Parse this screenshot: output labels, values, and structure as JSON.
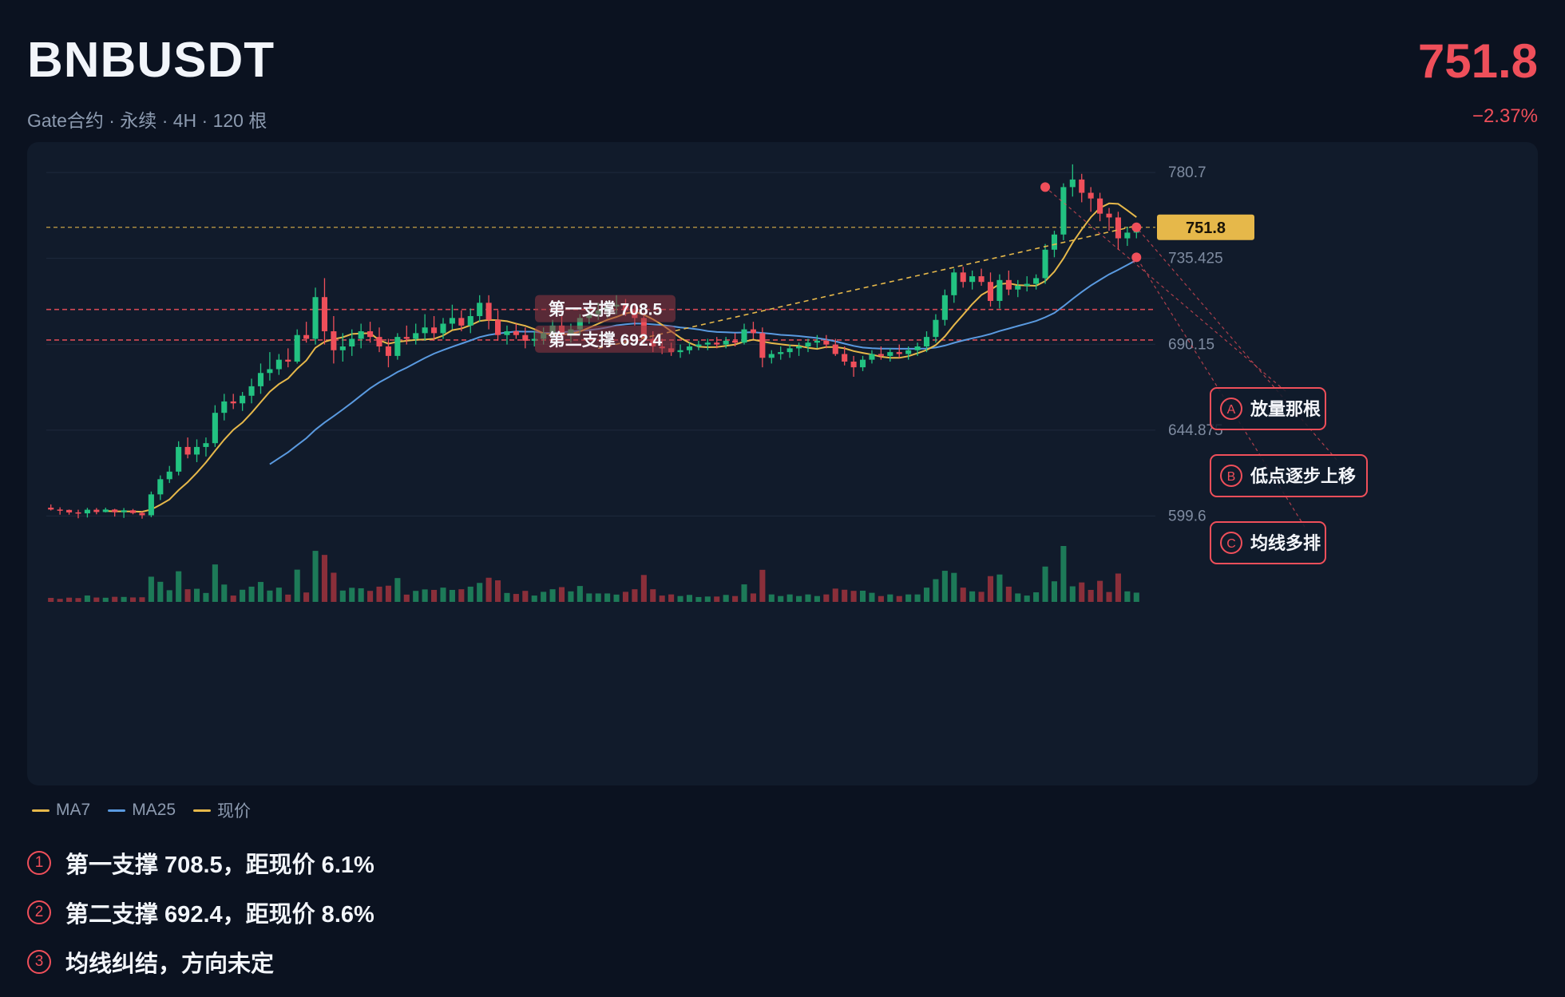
{
  "header": {
    "symbol": "BNBUSDT",
    "subtitle": "Gate合约 · 永续 · 4H · 120 根",
    "price": "751.8",
    "change": "−2.37%"
  },
  "colors": {
    "up": "#22c281",
    "down": "#ef4f5a",
    "up_volume": "#1d7a58",
    "down_volume": "#8a2f3a",
    "ma7": "#e6b84a",
    "ma25": "#5a9ae0",
    "price_tag": "#e6b84a",
    "support": "#d64a55",
    "annotation": "#ef4f5a"
  },
  "chart_data": {
    "type": "candlestick",
    "bars": 120,
    "ylim": [
      580,
      790
    ],
    "y_ticks": [
      "780.7",
      "735.425",
      "690.15",
      "644.875",
      "599.6"
    ],
    "current_price": 751.8,
    "current_price_label": "751.8",
    "supports": [
      {
        "label": "第一支撑 708.5",
        "value": 708.5
      },
      {
        "label": "第二支撑 692.4",
        "value": 692.4
      }
    ],
    "ohlc": [
      [
        604.0,
        605.7,
        602.5,
        603.0
      ],
      [
        603.0,
        604.2,
        600.3,
        602.8
      ],
      [
        602.8,
        603.0,
        600.3,
        601.5
      ],
      [
        601.5,
        602.9,
        598.4,
        601.0
      ],
      [
        601.0,
        603.9,
        598.8,
        602.9
      ],
      [
        602.9,
        603.8,
        600.5,
        601.7
      ],
      [
        601.7,
        604.0,
        601.5,
        603.0
      ],
      [
        603.0,
        603.4,
        599.3,
        601.6
      ],
      [
        601.6,
        603.8,
        598.6,
        602.6
      ],
      [
        602.6,
        603.3,
        600.5,
        601.2
      ],
      [
        601.2,
        602.0,
        598.2,
        600.0
      ],
      [
        600.0,
        612.5,
        599.0,
        611.0
      ],
      [
        611.0,
        621.0,
        608.0,
        619.0
      ],
      [
        619.0,
        626.0,
        617.0,
        623.0
      ],
      [
        623.0,
        639.0,
        621.0,
        636.0
      ],
      [
        636.0,
        641.0,
        630.0,
        632.0
      ],
      [
        632.0,
        640.0,
        628.0,
        636.0
      ],
      [
        636.0,
        641.0,
        631.0,
        638.0
      ],
      [
        638.0,
        658.0,
        636.0,
        654.0
      ],
      [
        654.0,
        664.0,
        650.0,
        660.0
      ],
      [
        660.0,
        664.0,
        656.0,
        659.0
      ],
      [
        659.0,
        665.0,
        655.0,
        663.0
      ],
      [
        663.0,
        672.0,
        659.0,
        668.0
      ],
      [
        668.0,
        680.0,
        664.0,
        675.0
      ],
      [
        675.0,
        686.0,
        671.0,
        677.0
      ],
      [
        677.0,
        685.0,
        674.0,
        682.0
      ],
      [
        682.0,
        688.0,
        678.0,
        681.0
      ],
      [
        681.0,
        698.0,
        680.0,
        695.0
      ],
      [
        695.0,
        702.0,
        691.0,
        693.0
      ],
      [
        693.0,
        720.0,
        690.0,
        715.0
      ],
      [
        715.0,
        725.0,
        690.0,
        697.0
      ],
      [
        697.0,
        705.0,
        680.0,
        687.0
      ],
      [
        687.0,
        696.0,
        681.0,
        689.0
      ],
      [
        689.0,
        698.0,
        684.0,
        693.0
      ],
      [
        693.0,
        701.0,
        688.0,
        697.0
      ],
      [
        697.0,
        702.0,
        691.0,
        694.0
      ],
      [
        694.0,
        699.0,
        686.0,
        689.0
      ],
      [
        689.0,
        693.0,
        678.0,
        684.0
      ],
      [
        684.0,
        696.0,
        682.0,
        694.0
      ],
      [
        694.0,
        700.0,
        690.0,
        693.0
      ],
      [
        693.0,
        701.0,
        690.0,
        696.0
      ],
      [
        696.0,
        706.0,
        692.0,
        699.0
      ],
      [
        699.0,
        705.0,
        692.0,
        696.0
      ],
      [
        696.0,
        704.0,
        693.0,
        701.0
      ],
      [
        701.0,
        711.0,
        698.0,
        704.0
      ],
      [
        704.0,
        708.0,
        697.0,
        700.0
      ],
      [
        700.0,
        709.0,
        696.0,
        705.0
      ],
      [
        705.0,
        716.0,
        702.0,
        712.0
      ],
      [
        712.0,
        716.0,
        698.0,
        703.0
      ],
      [
        703.0,
        708.0,
        692.0,
        695.0
      ],
      [
        695.0,
        700.0,
        690.0,
        697.0
      ],
      [
        697.0,
        701.0,
        693.0,
        695.0
      ],
      [
        695.0,
        699.0,
        688.0,
        692.0
      ],
      [
        692.0,
        697.0,
        689.0,
        693.0
      ],
      [
        693.0,
        699.0,
        690.0,
        696.0
      ],
      [
        696.0,
        703.0,
        692.0,
        700.0
      ],
      [
        700.0,
        705.0,
        693.0,
        695.0
      ],
      [
        695.0,
        701.0,
        691.0,
        698.0
      ],
      [
        698.0,
        706.0,
        695.0,
        704.0
      ],
      [
        704.0,
        710.0,
        701.0,
        706.0
      ],
      [
        706.0,
        712.0,
        703.0,
        708.0
      ],
      [
        708.0,
        713.0,
        704.0,
        710.0
      ],
      [
        710.0,
        716.0,
        706.0,
        711.0
      ],
      [
        711.0,
        714.0,
        705.0,
        708.0
      ],
      [
        708.0,
        711.0,
        700.0,
        704.0
      ],
      [
        704.0,
        707.0,
        690.0,
        693.0
      ],
      [
        693.0,
        697.0,
        686.0,
        689.0
      ],
      [
        689.0,
        693.0,
        685.0,
        688.0
      ],
      [
        688.0,
        691.0,
        684.0,
        686.0
      ],
      [
        686.0,
        690.0,
        683.0,
        687.0
      ],
      [
        687.0,
        691.0,
        685.0,
        689.0
      ],
      [
        689.0,
        692.0,
        687.0,
        690.0
      ],
      [
        690.0,
        693.0,
        687.0,
        691.0
      ],
      [
        691.0,
        694.0,
        688.0,
        690.0
      ],
      [
        690.0,
        694.0,
        688.0,
        692.0
      ],
      [
        692.0,
        696.0,
        689.0,
        691.0
      ],
      [
        691.0,
        701.0,
        690.0,
        698.0
      ],
      [
        698.0,
        702.0,
        693.0,
        696.0
      ],
      [
        696.0,
        699.0,
        678.0,
        683.0
      ],
      [
        683.0,
        687.0,
        680.0,
        685.0
      ],
      [
        685.0,
        689.0,
        682.0,
        686.0
      ],
      [
        686.0,
        690.0,
        683.0,
        688.0
      ],
      [
        688.0,
        691.0,
        684.0,
        689.0
      ],
      [
        689.0,
        693.0,
        686.0,
        691.0
      ],
      [
        691.0,
        695.0,
        688.0,
        692.0
      ],
      [
        692.0,
        695.0,
        688.0,
        690.0
      ],
      [
        690.0,
        693.0,
        684.0,
        685.0
      ],
      [
        685.0,
        689.0,
        679.0,
        681.0
      ],
      [
        681.0,
        684.0,
        673.0,
        678.0
      ],
      [
        678.0,
        684.0,
        676.0,
        682.0
      ],
      [
        682.0,
        687.0,
        680.0,
        685.0
      ],
      [
        685.0,
        689.0,
        682.0,
        684.0
      ],
      [
        684.0,
        688.0,
        681.0,
        686.0
      ],
      [
        686.0,
        690.0,
        683.0,
        685.0
      ],
      [
        685.0,
        689.0,
        682.0,
        687.0
      ],
      [
        687.0,
        691.0,
        684.0,
        689.0
      ],
      [
        689.0,
        697.0,
        686.0,
        694.0
      ],
      [
        694.0,
        706.0,
        691.0,
        703.0
      ],
      [
        703.0,
        719.0,
        700.0,
        716.0
      ],
      [
        716.0,
        730.0,
        712.0,
        728.0
      ],
      [
        728.0,
        731.0,
        720.0,
        723.0
      ],
      [
        723.0,
        729.0,
        719.0,
        726.0
      ],
      [
        726.0,
        730.0,
        721.0,
        723.0
      ],
      [
        723.0,
        728.0,
        710.0,
        713.0
      ],
      [
        713.0,
        727.0,
        709.0,
        724.0
      ],
      [
        724.0,
        729.0,
        716.0,
        719.0
      ],
      [
        719.0,
        724.0,
        715.0,
        721.0
      ],
      [
        721.0,
        726.0,
        718.0,
        722.0
      ],
      [
        722.0,
        727.0,
        719.0,
        725.0
      ],
      [
        725.0,
        743.0,
        722.0,
        740.0
      ],
      [
        740.0,
        750.0,
        736.0,
        748.0
      ],
      [
        748.0,
        775.0,
        745.0,
        773.0
      ],
      [
        773.0,
        785.0,
        768.0,
        777.0
      ],
      [
        777.0,
        780.0,
        765.0,
        770.0
      ],
      [
        770.0,
        773.0,
        760.0,
        767.0
      ],
      [
        767.0,
        770.0,
        755.0,
        759.0
      ],
      [
        759.0,
        762.0,
        750.0,
        757.0
      ],
      [
        757.0,
        760.0,
        740.0,
        746.0
      ],
      [
        746.0,
        752.0,
        742.0,
        749.0
      ],
      [
        749.0,
        754.0,
        746.0,
        751.8
      ]
    ],
    "ma7_label": "MA7",
    "ma25_label": "MA25",
    "price_label": "现价"
  },
  "annotations": {
    "A": {
      "letter": "A",
      "label": "放量那根"
    },
    "B": {
      "letter": "B",
      "label": "低点逐步上移"
    },
    "C": {
      "letter": "C",
      "label": "均线多排"
    }
  },
  "notes": [
    {
      "num": "1",
      "text": "第一支撑 708.5，距现价 6.1%"
    },
    {
      "num": "2",
      "text": "第二支撑 692.4，距现价 8.6%"
    },
    {
      "num": "3",
      "text": "均线纠结，方向未定"
    }
  ]
}
